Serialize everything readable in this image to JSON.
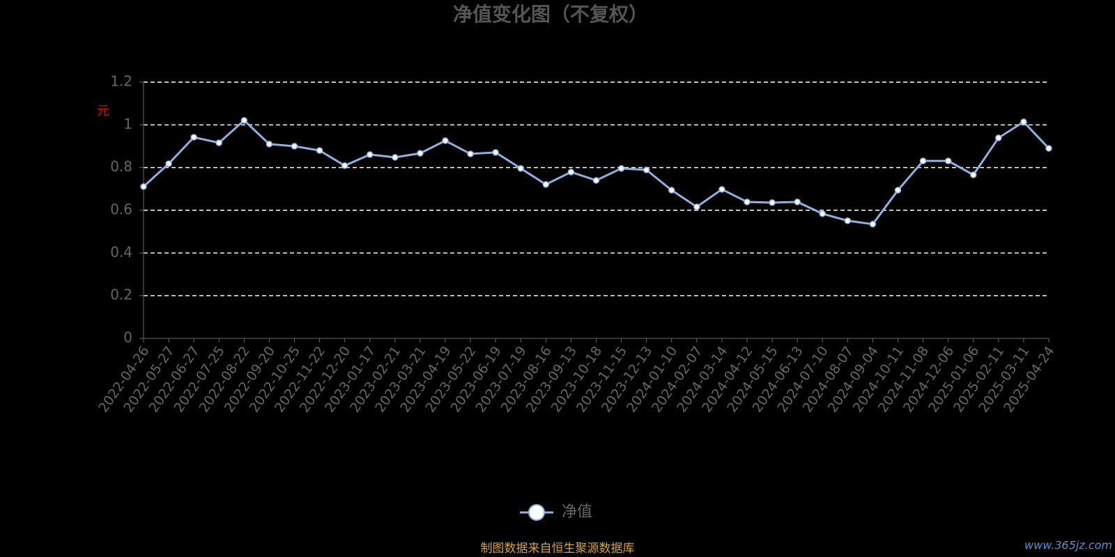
{
  "chart_data": {
    "type": "line",
    "title": "净值变化图（不复权）",
    "y_label": "元",
    "categories": [
      "2022-04-26",
      "2022-05-27",
      "2022-06-27",
      "2022-07-25",
      "2022-08-22",
      "2022-09-20",
      "2022-10-25",
      "2022-11-22",
      "2022-12-20",
      "2023-01-17",
      "2023-02-21",
      "2023-03-21",
      "2023-04-19",
      "2023-05-22",
      "2023-06-19",
      "2023-07-19",
      "2023-08-16",
      "2023-09-13",
      "2023-10-18",
      "2023-11-15",
      "2023-12-13",
      "2024-01-10",
      "2024-02-07",
      "2024-03-14",
      "2024-04-12",
      "2024-05-15",
      "2024-06-13",
      "2024-07-10",
      "2024-08-07",
      "2024-09-04",
      "2024-10-11",
      "2024-11-08",
      "2024-12-06",
      "2025-01-06",
      "2025-02-11",
      "2025-03-11",
      "2025-04-24"
    ],
    "series": [
      {
        "name": "净值",
        "color": "#8fb0e0",
        "values": [
          0.711,
          0.818,
          0.942,
          0.916,
          1.021,
          0.91,
          0.9,
          0.88,
          0.809,
          0.861,
          0.848,
          0.867,
          0.926,
          0.864,
          0.871,
          0.796,
          0.721,
          0.779,
          0.74,
          0.796,
          0.789,
          0.694,
          0.616,
          0.698,
          0.639,
          0.636,
          0.639,
          0.584,
          0.551,
          0.535,
          0.694,
          0.831,
          0.831,
          0.766,
          0.939,
          1.014,
          0.89
        ]
      }
    ],
    "ylim": [
      0,
      1.2
    ],
    "yticks": [
      0,
      0.2,
      0.4,
      0.6,
      0.8,
      1,
      1.2
    ],
    "grid": true,
    "legend": "bottom",
    "footer": "制图数据来自恒生聚源数据库",
    "watermark": "www.365jz.com"
  }
}
